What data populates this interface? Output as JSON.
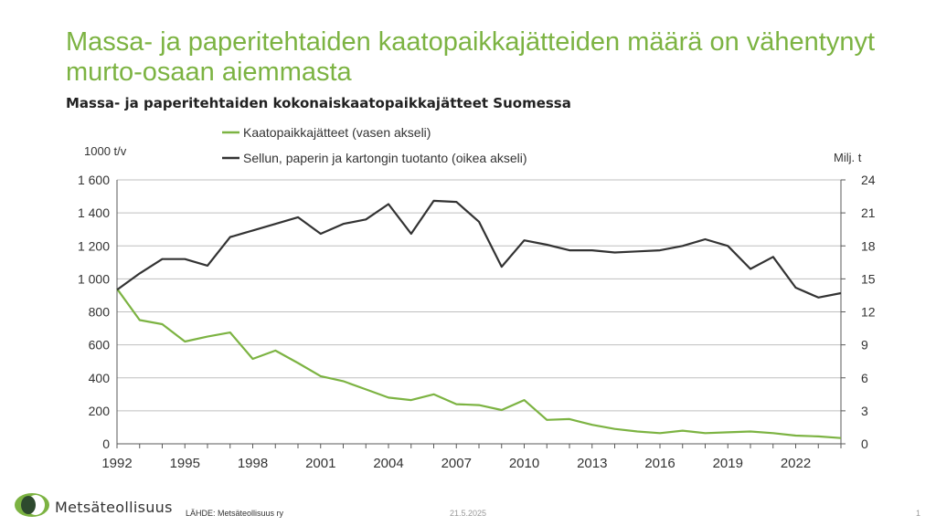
{
  "slide": {
    "title": "Massa- ja paperitehtaiden kaatopaikkajätteiden määrä on vähentynyt murto-osaan aiemmasta",
    "subtitle": "Massa- ja paperitehtaiden kokonaiskaatopaikkajätteet Suomessa"
  },
  "footer": {
    "brand": "Metsäteollisuus",
    "source": "LÄHDE: Metsäteollisuus ry",
    "date": "21.5.2025",
    "page": "1"
  },
  "colors": {
    "accent": "#7cb342",
    "dark_series": "#333333",
    "grid": "#bfbfbf"
  },
  "chart_data": {
    "type": "line",
    "xlabel": "",
    "ylabel_left": "1000 t/v",
    "ylabel_right": "Milj. t",
    "xlim": [
      1992,
      2024
    ],
    "x_ticks": [
      1992,
      1995,
      1998,
      2001,
      2004,
      2007,
      2010,
      2013,
      2016,
      2019,
      2022
    ],
    "x_tick_labels": [
      "1992",
      "1995",
      "1998",
      "2001",
      "2004",
      "2007",
      "2010",
      "2013",
      "2016",
      "2019",
      "2022"
    ],
    "ylim_left": [
      0,
      1600
    ],
    "ylim_right": [
      0,
      24
    ],
    "y_ticks_left": [
      0,
      200,
      400,
      600,
      800,
      1000,
      1200,
      1400,
      1600
    ],
    "y_tick_labels_left": [
      "0",
      "200",
      "400",
      "600",
      "800",
      "1 000",
      "1 200",
      "1 400",
      "1 600"
    ],
    "y_ticks_right": [
      0,
      3,
      6,
      9,
      12,
      15,
      18,
      21,
      24
    ],
    "y_tick_labels_right": [
      "0",
      "3",
      "6",
      "9",
      "12",
      "15",
      "18",
      "21",
      "24"
    ],
    "grid": true,
    "legend_placement": "top-center",
    "series": [
      {
        "name": "Kaatopaikkajätteet (vasen akseli)",
        "axis": "left",
        "color": "#7cb342",
        "x": [
          1992,
          1993,
          1994,
          1995,
          1996,
          1997,
          1998,
          1999,
          2000,
          2001,
          2002,
          2003,
          2004,
          2005,
          2006,
          2007,
          2008,
          2009,
          2010,
          2011,
          2012,
          2013,
          2014,
          2015,
          2016,
          2017,
          2018,
          2019,
          2020,
          2021,
          2022,
          2023,
          2024
        ],
        "y": [
          940,
          750,
          725,
          620,
          650,
          675,
          515,
          565,
          490,
          410,
          380,
          330,
          280,
          265,
          300,
          240,
          235,
          205,
          265,
          145,
          150,
          115,
          90,
          75,
          65,
          80,
          65,
          70,
          75,
          65,
          50,
          45,
          35
        ]
      },
      {
        "name": "Sellun, paperin ja kartongin tuotanto (oikea akseli)",
        "axis": "right",
        "color": "#333333",
        "x": [
          1992,
          1993,
          1994,
          1995,
          1996,
          1997,
          1998,
          1999,
          2000,
          2001,
          2002,
          2003,
          2004,
          2005,
          2006,
          2007,
          2008,
          2009,
          2010,
          2011,
          2012,
          2013,
          2014,
          2015,
          2016,
          2017,
          2018,
          2019,
          2020,
          2021,
          2022,
          2023,
          2024
        ],
        "y": [
          14.0,
          15.5,
          16.8,
          16.8,
          16.2,
          18.8,
          19.4,
          20.0,
          20.6,
          19.1,
          20.0,
          20.4,
          21.8,
          19.1,
          22.1,
          22.0,
          20.2,
          16.1,
          18.5,
          18.1,
          17.6,
          17.6,
          17.4,
          17.5,
          17.6,
          18.0,
          18.6,
          18.0,
          15.9,
          17.0,
          14.2,
          13.3,
          13.7
        ]
      }
    ]
  }
}
